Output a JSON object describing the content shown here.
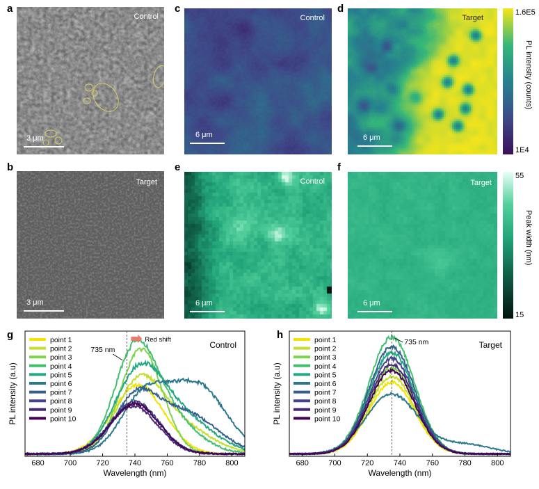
{
  "panels": {
    "a": {
      "letter": "a",
      "tag": "Control",
      "scale": "3 μm"
    },
    "b": {
      "letter": "b",
      "tag": "Target",
      "scale": "3 μm"
    },
    "c": {
      "letter": "c",
      "tag": "Control",
      "scale": "6 μm"
    },
    "d": {
      "letter": "d",
      "tag": "Target",
      "scale": "6 μm"
    },
    "e": {
      "letter": "e",
      "tag": "Control",
      "scale": "6 μm"
    },
    "f": {
      "letter": "f",
      "tag": "Target",
      "scale": "6 μm"
    }
  },
  "colorbars": {
    "intensity": {
      "title": "PL intensity (counts)",
      "max": "1.6E5",
      "min": "1E4"
    },
    "width": {
      "title": "Peak width (nm)",
      "max": "55",
      "min": "15"
    }
  },
  "colors": {
    "viridis_low": "#3b0f5a",
    "viridis_high": "#f6e51a",
    "teal_low": "#02130e",
    "teal_high": "#e9fff6"
  },
  "chart_data": [
    {
      "panel": "g",
      "type": "line",
      "title": "Control",
      "xlabel": "Wavelength (nm)",
      "ylabel": "PL intensity (a.u)",
      "xlim": [
        672,
        808
      ],
      "xticks": [
        680,
        700,
        720,
        740,
        760,
        780,
        800
      ],
      "ylim": [
        0,
        1.05
      ],
      "annotations": {
        "marker": "735 nm",
        "shift": "Red shift",
        "marker_x": 735
      },
      "series": [
        {
          "name": "point 1",
          "color": "#f2e400",
          "peaks": [
            {
              "c": 742,
              "a": 0.58,
              "w": 16
            }
          ],
          "noise": 0.03
        },
        {
          "name": "point 2",
          "color": "#c6de2d",
          "peaks": [
            {
              "c": 742,
              "a": 0.52,
              "w": 14
            },
            {
              "c": 765,
              "a": 0.25,
              "w": 20
            }
          ],
          "noise": 0.03
        },
        {
          "name": "point 3",
          "color": "#7fd34e",
          "peaks": [
            {
              "c": 744,
              "a": 0.88,
              "w": 13
            }
          ],
          "noise": 0.03
        },
        {
          "name": "point 4",
          "color": "#44bf70",
          "peaks": [
            {
              "c": 740,
              "a": 0.78,
              "w": 13
            },
            {
              "c": 760,
              "a": 0.3,
              "w": 18
            }
          ],
          "noise": 0.03
        },
        {
          "name": "point 5",
          "color": "#22a884",
          "peaks": [
            {
              "c": 742,
              "a": 0.62,
              "w": 15
            },
            {
              "c": 768,
              "a": 0.3,
              "w": 20
            }
          ],
          "noise": 0.03
        },
        {
          "name": "point 6",
          "color": "#2a788e",
          "peaks": [
            {
              "c": 745,
              "a": 0.45,
              "w": 14
            },
            {
              "c": 778,
              "a": 0.58,
              "w": 18
            }
          ],
          "noise": 0.03
        },
        {
          "name": "point 7",
          "color": "#355f8d",
          "peaks": [
            {
              "c": 740,
              "a": 0.42,
              "w": 13
            },
            {
              "c": 770,
              "a": 0.35,
              "w": 20
            }
          ],
          "noise": 0.03
        },
        {
          "name": "point 8",
          "color": "#414487",
          "peaks": [
            {
              "c": 740,
              "a": 0.44,
              "w": 15
            }
          ],
          "noise": 0.03
        },
        {
          "name": "point 9",
          "color": "#482878",
          "peaks": [
            {
              "c": 739,
              "a": 0.4,
              "w": 15
            }
          ],
          "noise": 0.03
        },
        {
          "name": "point 10",
          "color": "#440154",
          "peaks": [
            {
              "c": 740,
              "a": 0.42,
              "w": 15
            }
          ],
          "noise": 0.03
        }
      ]
    },
    {
      "panel": "h",
      "type": "line",
      "title": "Target",
      "xlabel": "Wavelength (nm)",
      "ylabel": "PL intensity (a.u)",
      "xlim": [
        672,
        808
      ],
      "xticks": [
        680,
        700,
        720,
        740,
        760,
        780,
        800
      ],
      "ylim": [
        0,
        1.05
      ],
      "annotations": {
        "marker": "735 nm",
        "marker_x": 735
      },
      "series": [
        {
          "name": "point 1",
          "color": "#f2e400",
          "peaks": [
            {
              "c": 735,
              "a": 0.6,
              "w": 14
            }
          ],
          "noise": 0.025
        },
        {
          "name": "point 2",
          "color": "#c6de2d",
          "peaks": [
            {
              "c": 735,
              "a": 0.65,
              "w": 14
            }
          ],
          "noise": 0.025
        },
        {
          "name": "point 3",
          "color": "#7fd34e",
          "peaks": [
            {
              "c": 735,
              "a": 0.72,
              "w": 14
            }
          ],
          "noise": 0.025
        },
        {
          "name": "point 4",
          "color": "#44bf70",
          "peaks": [
            {
              "c": 735,
              "a": 0.98,
              "w": 14
            }
          ],
          "noise": 0.025
        },
        {
          "name": "point 5",
          "color": "#22a884",
          "peaks": [
            {
              "c": 735,
              "a": 0.85,
              "w": 14
            }
          ],
          "noise": 0.025
        },
        {
          "name": "point 6",
          "color": "#2a788e",
          "peaks": [
            {
              "c": 735,
              "a": 0.5,
              "w": 16
            },
            {
              "c": 780,
              "a": 0.08,
              "w": 16
            }
          ],
          "noise": 0.025
        },
        {
          "name": "point 7",
          "color": "#355f8d",
          "peaks": [
            {
              "c": 735,
              "a": 0.9,
              "w": 14
            }
          ],
          "noise": 0.025
        },
        {
          "name": "point 8",
          "color": "#414487",
          "peaks": [
            {
              "c": 735,
              "a": 0.8,
              "w": 14
            }
          ],
          "noise": 0.025
        },
        {
          "name": "point 9",
          "color": "#482878",
          "peaks": [
            {
              "c": 735,
              "a": 0.75,
              "w": 14
            }
          ],
          "noise": 0.025
        },
        {
          "name": "point 10",
          "color": "#440154",
          "peaks": [
            {
              "c": 735,
              "a": 0.7,
              "w": 14
            }
          ],
          "noise": 0.025
        }
      ]
    }
  ]
}
